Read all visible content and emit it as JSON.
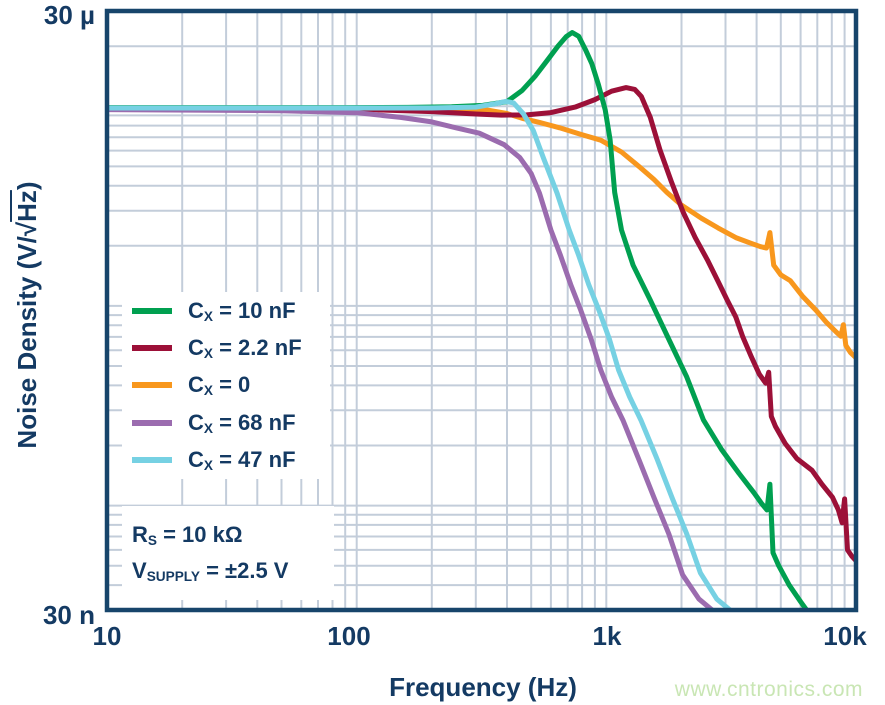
{
  "watermark": {
    "text": "www.cntronics.com",
    "color": "#c9e6b4"
  },
  "colors": {
    "axis_text": "#143a63",
    "grid": "#c3cdda",
    "frame": "#17456b",
    "background": "#ffffff"
  },
  "axes": {
    "x": {
      "title": "Frequency (Hz)",
      "tick_labels": [
        "10",
        "100",
        "1k",
        "10k"
      ]
    },
    "y": {
      "title_pre": "Noise Density (V/√",
      "title_overline": "Hz",
      "title_post": ")",
      "tick_top": "30 µ",
      "tick_bottom": "30 n"
    }
  },
  "legend": {
    "items": [
      {
        "pre": "C",
        "sub": "X",
        "post": " = 10 nF"
      },
      {
        "pre": "C",
        "sub": "X",
        "post": " = 2.2 nF"
      },
      {
        "pre": "C",
        "sub": "X",
        "post": " = 0"
      },
      {
        "pre": "C",
        "sub": "X",
        "post": " = 68 nF"
      },
      {
        "pre": "C",
        "sub": "X",
        "post": " = 47 nF"
      }
    ]
  },
  "annotations": [
    {
      "pre": "R",
      "sub": "S",
      "post": " = 10 kΩ"
    },
    {
      "pre": "V",
      "sub": "SUPPLY",
      "post": " = ±2.5 V"
    }
  ],
  "chart_data": {
    "type": "line",
    "title": "",
    "xlabel": "Frequency (Hz)",
    "ylabel": "Noise Density (V/√Hz)",
    "x_axis": {
      "scale": "log",
      "min_hz": 10,
      "max_hz": 10000,
      "ticks": [
        "10",
        "100",
        "1k",
        "10k"
      ],
      "grid": true
    },
    "y_axis": {
      "scale": "log",
      "min_nv": 30,
      "max_nv": 30000,
      "ticks": [
        "30 n",
        "30 µ"
      ],
      "unit": "nV/√Hz",
      "grid": true
    },
    "legend_position": "inside-left",
    "draw_order": [
      2,
      1,
      0,
      3,
      4
    ],
    "series": [
      {
        "name": "CX = 10 nF",
        "color": "#00a050",
        "points_hz_nv": [
          [
            10,
            9850
          ],
          [
            40,
            9850
          ],
          [
            90,
            9850
          ],
          [
            160,
            9870
          ],
          [
            240,
            9950
          ],
          [
            320,
            10100
          ],
          [
            400,
            10550
          ],
          [
            460,
            12000
          ],
          [
            520,
            14200
          ],
          [
            580,
            17000
          ],
          [
            640,
            20000
          ],
          [
            690,
            22300
          ],
          [
            730,
            23400
          ],
          [
            775,
            22400
          ],
          [
            825,
            19200
          ],
          [
            875,
            16300
          ],
          [
            930,
            12800
          ],
          [
            990,
            9600
          ],
          [
            1035,
            6800
          ],
          [
            1080,
            3700
          ],
          [
            1150,
            2400
          ],
          [
            1280,
            1600
          ],
          [
            1500,
            1070
          ],
          [
            1800,
            660
          ],
          [
            2100,
            440
          ],
          [
            2450,
            268
          ],
          [
            2900,
            190
          ],
          [
            3400,
            145
          ],
          [
            3900,
            116
          ],
          [
            4200,
            102
          ],
          [
            4400,
            95
          ],
          [
            4520,
            128
          ],
          [
            4650,
            58
          ],
          [
            4900,
            50
          ],
          [
            5400,
            40
          ],
          [
            6000,
            33
          ],
          [
            6600,
            28
          ]
        ]
      },
      {
        "name": "CX = 2.2 nF",
        "color": "#9c1038",
        "points_hz_nv": [
          [
            10,
            9800
          ],
          [
            60,
            9750
          ],
          [
            120,
            9600
          ],
          [
            200,
            9400
          ],
          [
            300,
            9150
          ],
          [
            380,
            9030
          ],
          [
            480,
            9050
          ],
          [
            600,
            9300
          ],
          [
            750,
            9900
          ],
          [
            900,
            10800
          ],
          [
            1050,
            11900
          ],
          [
            1200,
            12400
          ],
          [
            1300,
            12150
          ],
          [
            1380,
            11200
          ],
          [
            1500,
            8800
          ],
          [
            1640,
            6040
          ],
          [
            1820,
            4200
          ],
          [
            2030,
            2950
          ],
          [
            2270,
            2200
          ],
          [
            2540,
            1700
          ],
          [
            2800,
            1330
          ],
          [
            3050,
            1070
          ],
          [
            3300,
            880
          ],
          [
            3520,
            700
          ],
          [
            3800,
            560
          ],
          [
            4100,
            455
          ],
          [
            4350,
            410
          ],
          [
            4470,
            465
          ],
          [
            4580,
            280
          ],
          [
            4750,
            250
          ],
          [
            5200,
            205
          ],
          [
            5800,
            172
          ],
          [
            6670,
            150
          ],
          [
            7300,
            128
          ],
          [
            8050,
            110
          ],
          [
            8500,
            95
          ],
          [
            8800,
            82
          ],
          [
            9000,
            108
          ],
          [
            9250,
            60
          ],
          [
            9600,
            56
          ],
          [
            10000,
            53
          ]
        ]
      },
      {
        "name": "CX = 0",
        "color": "#f8971d",
        "points_hz_nv": [
          [
            10,
            9800
          ],
          [
            80,
            9800
          ],
          [
            160,
            9790
          ],
          [
            250,
            9740
          ],
          [
            330,
            9600
          ],
          [
            400,
            9200
          ],
          [
            460,
            8700
          ],
          [
            540,
            8300
          ],
          [
            650,
            7800
          ],
          [
            800,
            7200
          ],
          [
            950,
            6760
          ],
          [
            1150,
            5900
          ],
          [
            1350,
            5000
          ],
          [
            1550,
            4300
          ],
          [
            1750,
            3700
          ],
          [
            2000,
            3200
          ],
          [
            2400,
            2750
          ],
          [
            2800,
            2460
          ],
          [
            3300,
            2200
          ],
          [
            3800,
            2060
          ],
          [
            4150,
            1980
          ],
          [
            4380,
            1950
          ],
          [
            4520,
            2330
          ],
          [
            4680,
            1600
          ],
          [
            5000,
            1430
          ],
          [
            5450,
            1340
          ],
          [
            6100,
            1120
          ],
          [
            6920,
            950
          ],
          [
            7600,
            830
          ],
          [
            8330,
            740
          ],
          [
            8700,
            705
          ],
          [
            8900,
            805
          ],
          [
            9100,
            635
          ],
          [
            9500,
            585
          ],
          [
            10000,
            550
          ]
        ]
      },
      {
        "name": "CX = 68 nF",
        "color": "#9b6caf",
        "points_hz_nv": [
          [
            10,
            9620
          ],
          [
            50,
            9500
          ],
          [
            100,
            9280
          ],
          [
            150,
            8800
          ],
          [
            200,
            8350
          ],
          [
            250,
            7800
          ],
          [
            310,
            7330
          ],
          [
            390,
            6420
          ],
          [
            450,
            5530
          ],
          [
            500,
            4600
          ],
          [
            540,
            3670
          ],
          [
            600,
            2400
          ],
          [
            655,
            1790
          ],
          [
            720,
            1280
          ],
          [
            790,
            950
          ],
          [
            870,
            680
          ],
          [
            950,
            477
          ],
          [
            1050,
            350
          ],
          [
            1165,
            268
          ],
          [
            1350,
            170
          ],
          [
            1550,
            110
          ],
          [
            1780,
            72
          ],
          [
            2020,
            45
          ],
          [
            2350,
            34
          ],
          [
            2740,
            29
          ]
        ]
      },
      {
        "name": "CX = 47 nF",
        "color": "#76d1e3",
        "points_hz_nv": [
          [
            10,
            9800
          ],
          [
            80,
            9800
          ],
          [
            200,
            9800
          ],
          [
            300,
            9900
          ],
          [
            360,
            10300
          ],
          [
            395,
            10580
          ],
          [
            425,
            10400
          ],
          [
            465,
            9180
          ],
          [
            510,
            7560
          ],
          [
            560,
            5500
          ],
          [
            635,
            3670
          ],
          [
            710,
            2400
          ],
          [
            775,
            1790
          ],
          [
            850,
            1280
          ],
          [
            935,
            950
          ],
          [
            1030,
            680
          ],
          [
            1120,
            477
          ],
          [
            1240,
            350
          ],
          [
            1375,
            268
          ],
          [
            1600,
            170
          ],
          [
            1830,
            110
          ],
          [
            2100,
            72
          ],
          [
            2380,
            46
          ],
          [
            2770,
            34
          ],
          [
            3230,
            29
          ]
        ]
      }
    ]
  }
}
